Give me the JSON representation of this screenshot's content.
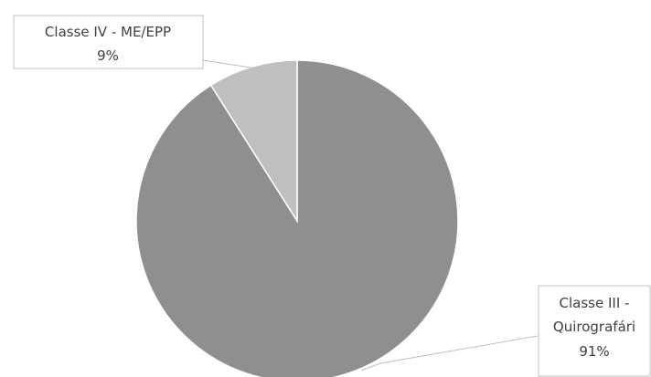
{
  "chart_data": {
    "type": "pie",
    "categories": [
      "Classe III - Quirografári",
      "Classe IV - ME/EPP"
    ],
    "values": [
      91,
      9
    ],
    "value_labels": [
      "91%",
      "9%"
    ],
    "colors": [
      "#8f8f8f",
      "#bfbfbf"
    ],
    "legend": "none"
  }
}
